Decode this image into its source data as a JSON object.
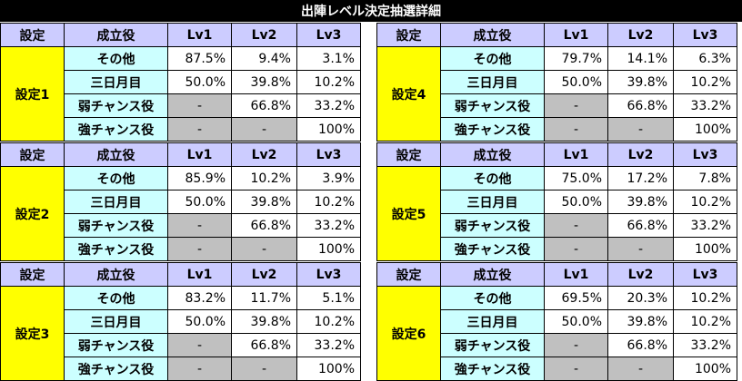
{
  "title": "出陣レベル決定抽選詳細",
  "header": {
    "setting": "設定",
    "role": "成立役",
    "lv1": "Lv1",
    "lv2": "Lv2",
    "lv3": "Lv3"
  },
  "panels": [
    {
      "setting": "設定1",
      "rows": [
        {
          "role": "その他",
          "lv1": "87.5%",
          "lv2": "9.4%",
          "lv3": "3.1%"
        },
        {
          "role": "三日月目",
          "lv1": "50.0%",
          "lv2": "39.8%",
          "lv3": "10.2%"
        },
        {
          "role": "弱チャンス役",
          "lv1": "-",
          "lv2": "66.8%",
          "lv3": "33.2%"
        },
        {
          "role": "強チャンス役",
          "lv1": "-",
          "lv2": "-",
          "lv3": "100%"
        }
      ]
    },
    {
      "setting": "設定4",
      "rows": [
        {
          "role": "その他",
          "lv1": "79.7%",
          "lv2": "14.1%",
          "lv3": "6.3%"
        },
        {
          "role": "三日月目",
          "lv1": "50.0%",
          "lv2": "39.8%",
          "lv3": "10.2%"
        },
        {
          "role": "弱チャンス役",
          "lv1": "-",
          "lv2": "66.8%",
          "lv3": "33.2%"
        },
        {
          "role": "強チャンス役",
          "lv1": "-",
          "lv2": "-",
          "lv3": "100%"
        }
      ]
    },
    {
      "setting": "設定2",
      "rows": [
        {
          "role": "その他",
          "lv1": "85.9%",
          "lv2": "10.2%",
          "lv3": "3.9%"
        },
        {
          "role": "三日月目",
          "lv1": "50.0%",
          "lv2": "39.8%",
          "lv3": "10.2%"
        },
        {
          "role": "弱チャンス役",
          "lv1": "-",
          "lv2": "66.8%",
          "lv3": "33.2%"
        },
        {
          "role": "強チャンス役",
          "lv1": "-",
          "lv2": "-",
          "lv3": "100%"
        }
      ]
    },
    {
      "setting": "設定5",
      "rows": [
        {
          "role": "その他",
          "lv1": "75.0%",
          "lv2": "17.2%",
          "lv3": "7.8%"
        },
        {
          "role": "三日月目",
          "lv1": "50.0%",
          "lv2": "39.8%",
          "lv3": "10.2%"
        },
        {
          "role": "弱チャンス役",
          "lv1": "-",
          "lv2": "66.8%",
          "lv3": "33.2%"
        },
        {
          "role": "強チャンス役",
          "lv1": "-",
          "lv2": "-",
          "lv3": "100%"
        }
      ]
    },
    {
      "setting": "設定3",
      "rows": [
        {
          "role": "その他",
          "lv1": "83.2%",
          "lv2": "11.7%",
          "lv3": "5.1%"
        },
        {
          "role": "三日月目",
          "lv1": "50.0%",
          "lv2": "39.8%",
          "lv3": "10.2%"
        },
        {
          "role": "弱チャンス役",
          "lv1": "-",
          "lv2": "66.8%",
          "lv3": "33.2%"
        },
        {
          "role": "強チャンス役",
          "lv1": "-",
          "lv2": "-",
          "lv3": "100%"
        }
      ]
    },
    {
      "setting": "設定6",
      "rows": [
        {
          "role": "その他",
          "lv1": "69.5%",
          "lv2": "20.3%",
          "lv3": "10.2%"
        },
        {
          "role": "三日月目",
          "lv1": "50.0%",
          "lv2": "39.8%",
          "lv3": "10.2%"
        },
        {
          "role": "弱チャンス役",
          "lv1": "-",
          "lv2": "66.8%",
          "lv3": "33.2%"
        },
        {
          "role": "強チャンス役",
          "lv1": "-",
          "lv2": "-",
          "lv3": "100%"
        }
      ]
    }
  ]
}
